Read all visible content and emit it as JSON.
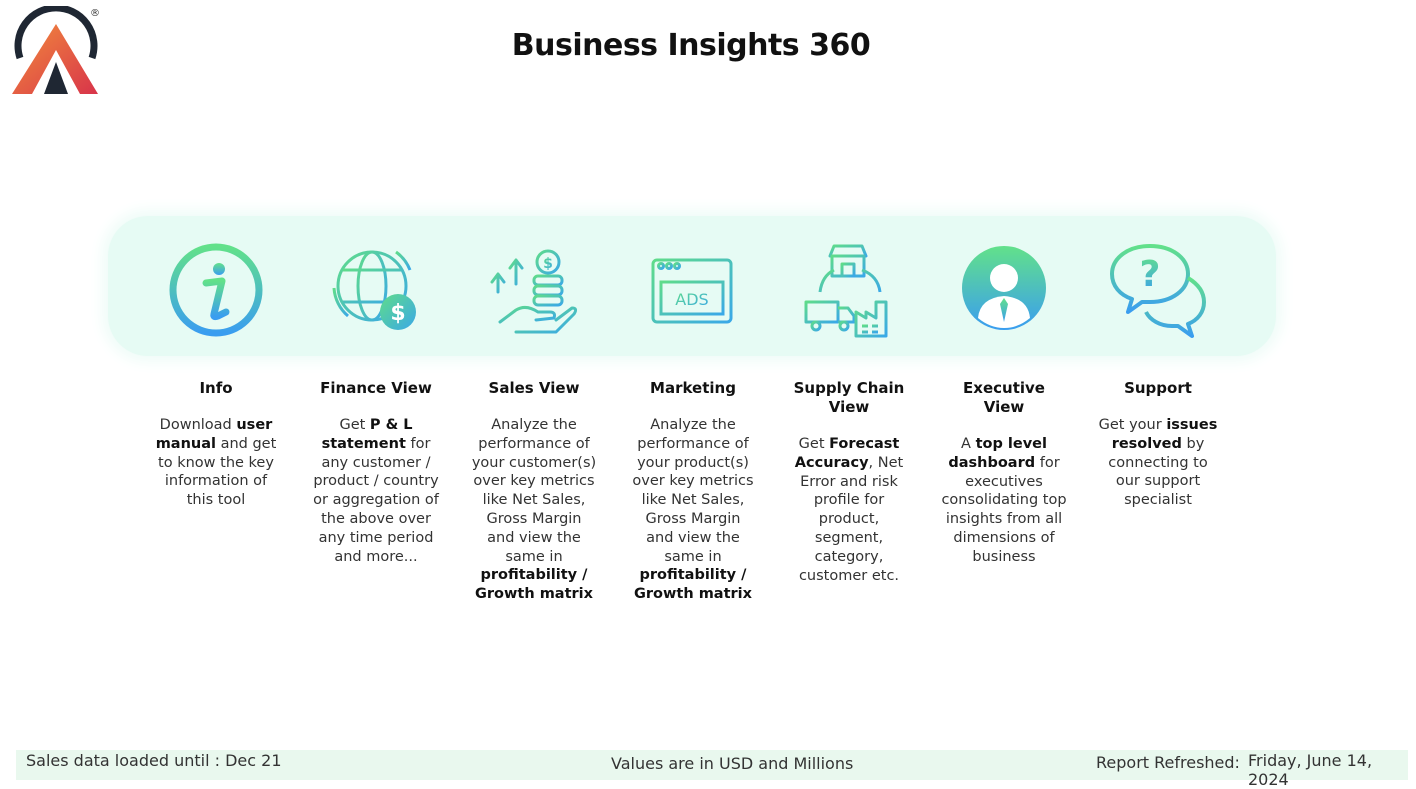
{
  "header": {
    "title": "Business Insights 360",
    "logo_icon": "atliq-logo-icon",
    "registered_mark": "®"
  },
  "colors": {
    "gradient_start": "#5fe08a",
    "gradient_end": "#3a9df0",
    "band_bg": "#e6fbf4",
    "footer_bg": "#e9f8ee",
    "logo_dark": "#1f2733",
    "logo_red": "#e8463a",
    "logo_orange": "#f28c3c"
  },
  "nav_cards": [
    {
      "icon": "info-icon",
      "title": "Info",
      "desc": [
        "Download ",
        {
          "b": "user manual"
        },
        " and get to know the key information of this tool"
      ]
    },
    {
      "icon": "globe-dollar-icon",
      "title": "Finance View",
      "desc": [
        "Get ",
        {
          "b": "P & L statement"
        },
        " for any customer / product / country or aggregation of the above over any time period and more..."
      ]
    },
    {
      "icon": "hand-coins-growth-icon",
      "title": "Sales View",
      "desc": [
        "Analyze the performance of your customer(s) over key metrics like Net Sales, Gross Margin and view the same in ",
        {
          "b": "profitability / Growth matrix"
        }
      ]
    },
    {
      "icon": "ads-browser-icon",
      "title": "Marketing",
      "desc": [
        "Analyze the performance of your product(s) over key metrics like Net Sales, Gross Margin and view the same in ",
        {
          "b": "profitability / Growth matrix"
        }
      ]
    },
    {
      "icon": "supply-chain-icon",
      "title": "Supply Chain View",
      "desc": [
        "Get ",
        {
          "b": "Forecast Accuracy"
        },
        ", Net Error and risk profile for product, segment, category, customer etc."
      ]
    },
    {
      "icon": "executive-user-icon",
      "title": "Executive View",
      "desc": [
        "A ",
        {
          "b": "top level dashboard"
        },
        " for executives consolidating top insights from all dimensions of business"
      ]
    },
    {
      "icon": "support-chat-icon",
      "title": "Support",
      "desc": [
        "Get your ",
        {
          "b": "issues resolved"
        },
        " by connecting to our support specialist"
      ]
    }
  ],
  "footer": {
    "data_loaded": "Sales data loaded until : Dec 21",
    "units_note": "Values are in USD and Millions",
    "refreshed_label": "Report Refreshed:",
    "refreshed_date": "Friday, June 14, 2024"
  }
}
